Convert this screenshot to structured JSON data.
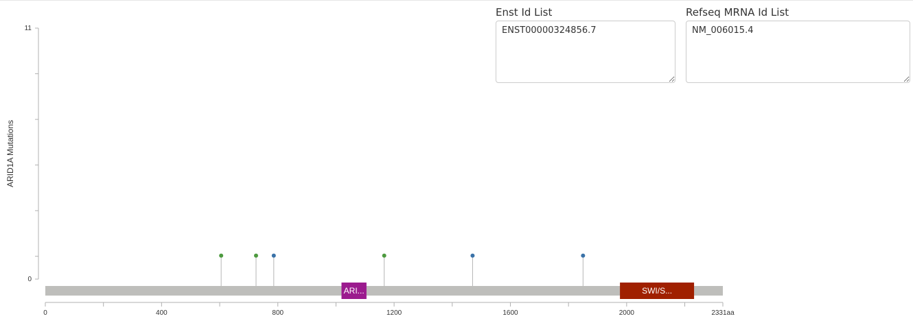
{
  "chart_data": {
    "type": "lollipop",
    "ylabel": "ARID1A Mutations",
    "ylim": [
      0,
      11
    ],
    "y_ticks": [
      0,
      11
    ],
    "xlim": [
      0,
      2331
    ],
    "x_ticks": [
      0,
      400,
      800,
      1200,
      1600,
      2000
    ],
    "x_end_label": "2331aa",
    "mutations": [
      {
        "position": 605,
        "count": 1,
        "color": "#4d9a3f"
      },
      {
        "position": 725,
        "count": 1,
        "color": "#4d9a3f"
      },
      {
        "position": 786,
        "count": 1,
        "color": "#3a72a8"
      },
      {
        "position": 1166,
        "count": 1,
        "color": "#4d9a3f"
      },
      {
        "position": 1470,
        "count": 1,
        "color": "#3a72a8"
      },
      {
        "position": 1850,
        "count": 1,
        "color": "#3a72a8"
      }
    ],
    "domains": [
      {
        "label": "ARI...",
        "start": 1019,
        "end": 1105,
        "color": "#9b1b8e"
      },
      {
        "label": "SWI/S...",
        "start": 1977,
        "end": 2232,
        "color": "#a02000"
      }
    ],
    "backbone_color": "#bebebb"
  },
  "fields": {
    "enst": {
      "label": "Enst Id List",
      "value": "ENST00000324856.7"
    },
    "refseq": {
      "label": "Refseq MRNA Id List",
      "value": "NM_006015.4"
    }
  }
}
